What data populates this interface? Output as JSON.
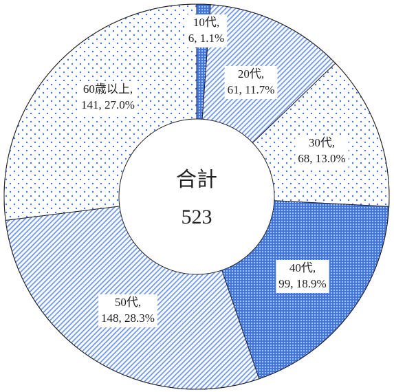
{
  "chart_data": {
    "type": "donut",
    "categories": [
      "10代,",
      "20代,",
      "30代,",
      "40代,",
      "50代,",
      "60歳以上,"
    ],
    "values": [
      6,
      61,
      68,
      99,
      148,
      141
    ],
    "value_labels": [
      "6, 1.1%",
      "61, 11.7%",
      "68, 13.0%",
      "99, 18.9%",
      "148, 28.3%",
      "141, 27.0%"
    ],
    "color": "#3f74e6",
    "patterns": [
      "dense-dots",
      "stripes",
      "dots",
      "dense-dots",
      "stripes",
      "dots"
    ],
    "total_label": "合計",
    "total": 523
  }
}
